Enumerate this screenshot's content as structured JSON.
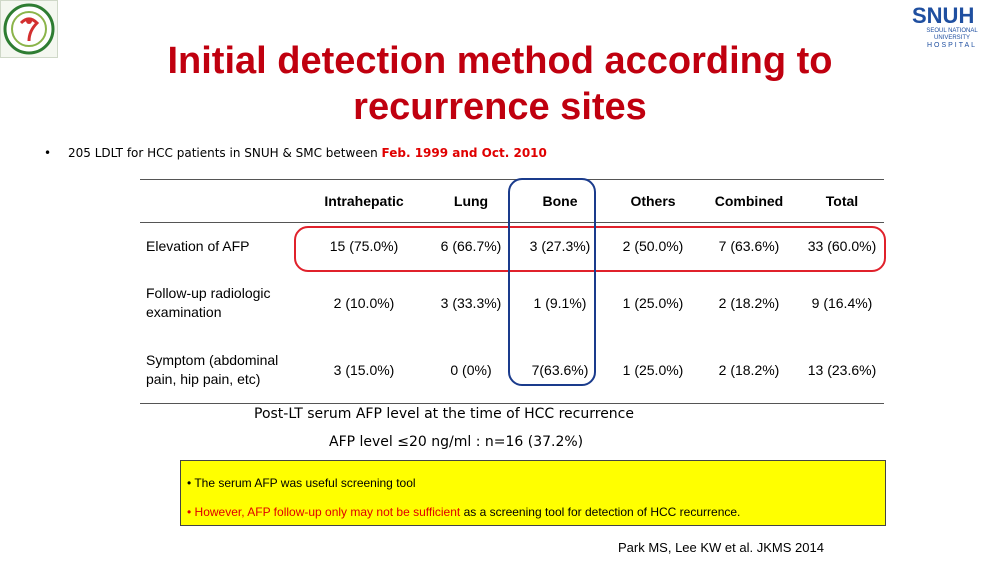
{
  "logos": {
    "left_icon": "hospital-emblem-icon",
    "right_mark": "SNUH",
    "right_sub": "SEOUL NATIONAL UNIVERSITY",
    "right_hospital": "HOSPITAL"
  },
  "title": {
    "line1": "Initial detection method according to",
    "line2": "recurrence sites",
    "color": "#c0000f"
  },
  "bullet": {
    "marker": "•",
    "text": "205 LDLT for HCC patients in SNUH & SMC between ",
    "highlight": "Feb. 1999 and Oct. 2010"
  },
  "table": {
    "headers": [
      "",
      "Intrahepatic",
      "Lung",
      "Bone",
      "Others",
      "Combined",
      "Total"
    ],
    "rows": [
      {
        "label": "Elevation of AFP",
        "cells": [
          "15 (75.0%)",
          "6 (66.7%)",
          "3 (27.3%)",
          "2 (50.0%)",
          "7 (63.6%)",
          "33 (60.0%)"
        ]
      },
      {
        "label": "Follow-up radiologic examination",
        "cells": [
          "2 (10.0%)",
          "3 (33.3%)",
          "1 (9.1%)",
          "1 (25.0%)",
          "2 (18.2%)",
          "9 (16.4%)"
        ]
      },
      {
        "label": "Symptom (abdominal pain, hip pain, etc)",
        "cells": [
          "3 (15.0%)",
          "0 (0%)",
          "7(63.6%)",
          "1 (25.0%)",
          "2 (18.2%)",
          "13 (23.6%)"
        ]
      }
    ],
    "highlight_row_color": "#e0212b",
    "highlight_col_color": "#1a3b8c"
  },
  "notes": {
    "line1": "Post-LT serum AFP level at the time of HCC recurrence",
    "line2": "AFP level ≤20 ng/ml : n=16 (37.2%)"
  },
  "callout": {
    "item1": "• The serum AFP was useful screening tool",
    "item2_red": "• However, AFP follow-up only may not be sufficient",
    "item2_rest": " as a screening tool for detection of HCC recurrence.",
    "background": "#ffff00"
  },
  "citation": "Park MS, Lee KW et al. JKMS 2014"
}
